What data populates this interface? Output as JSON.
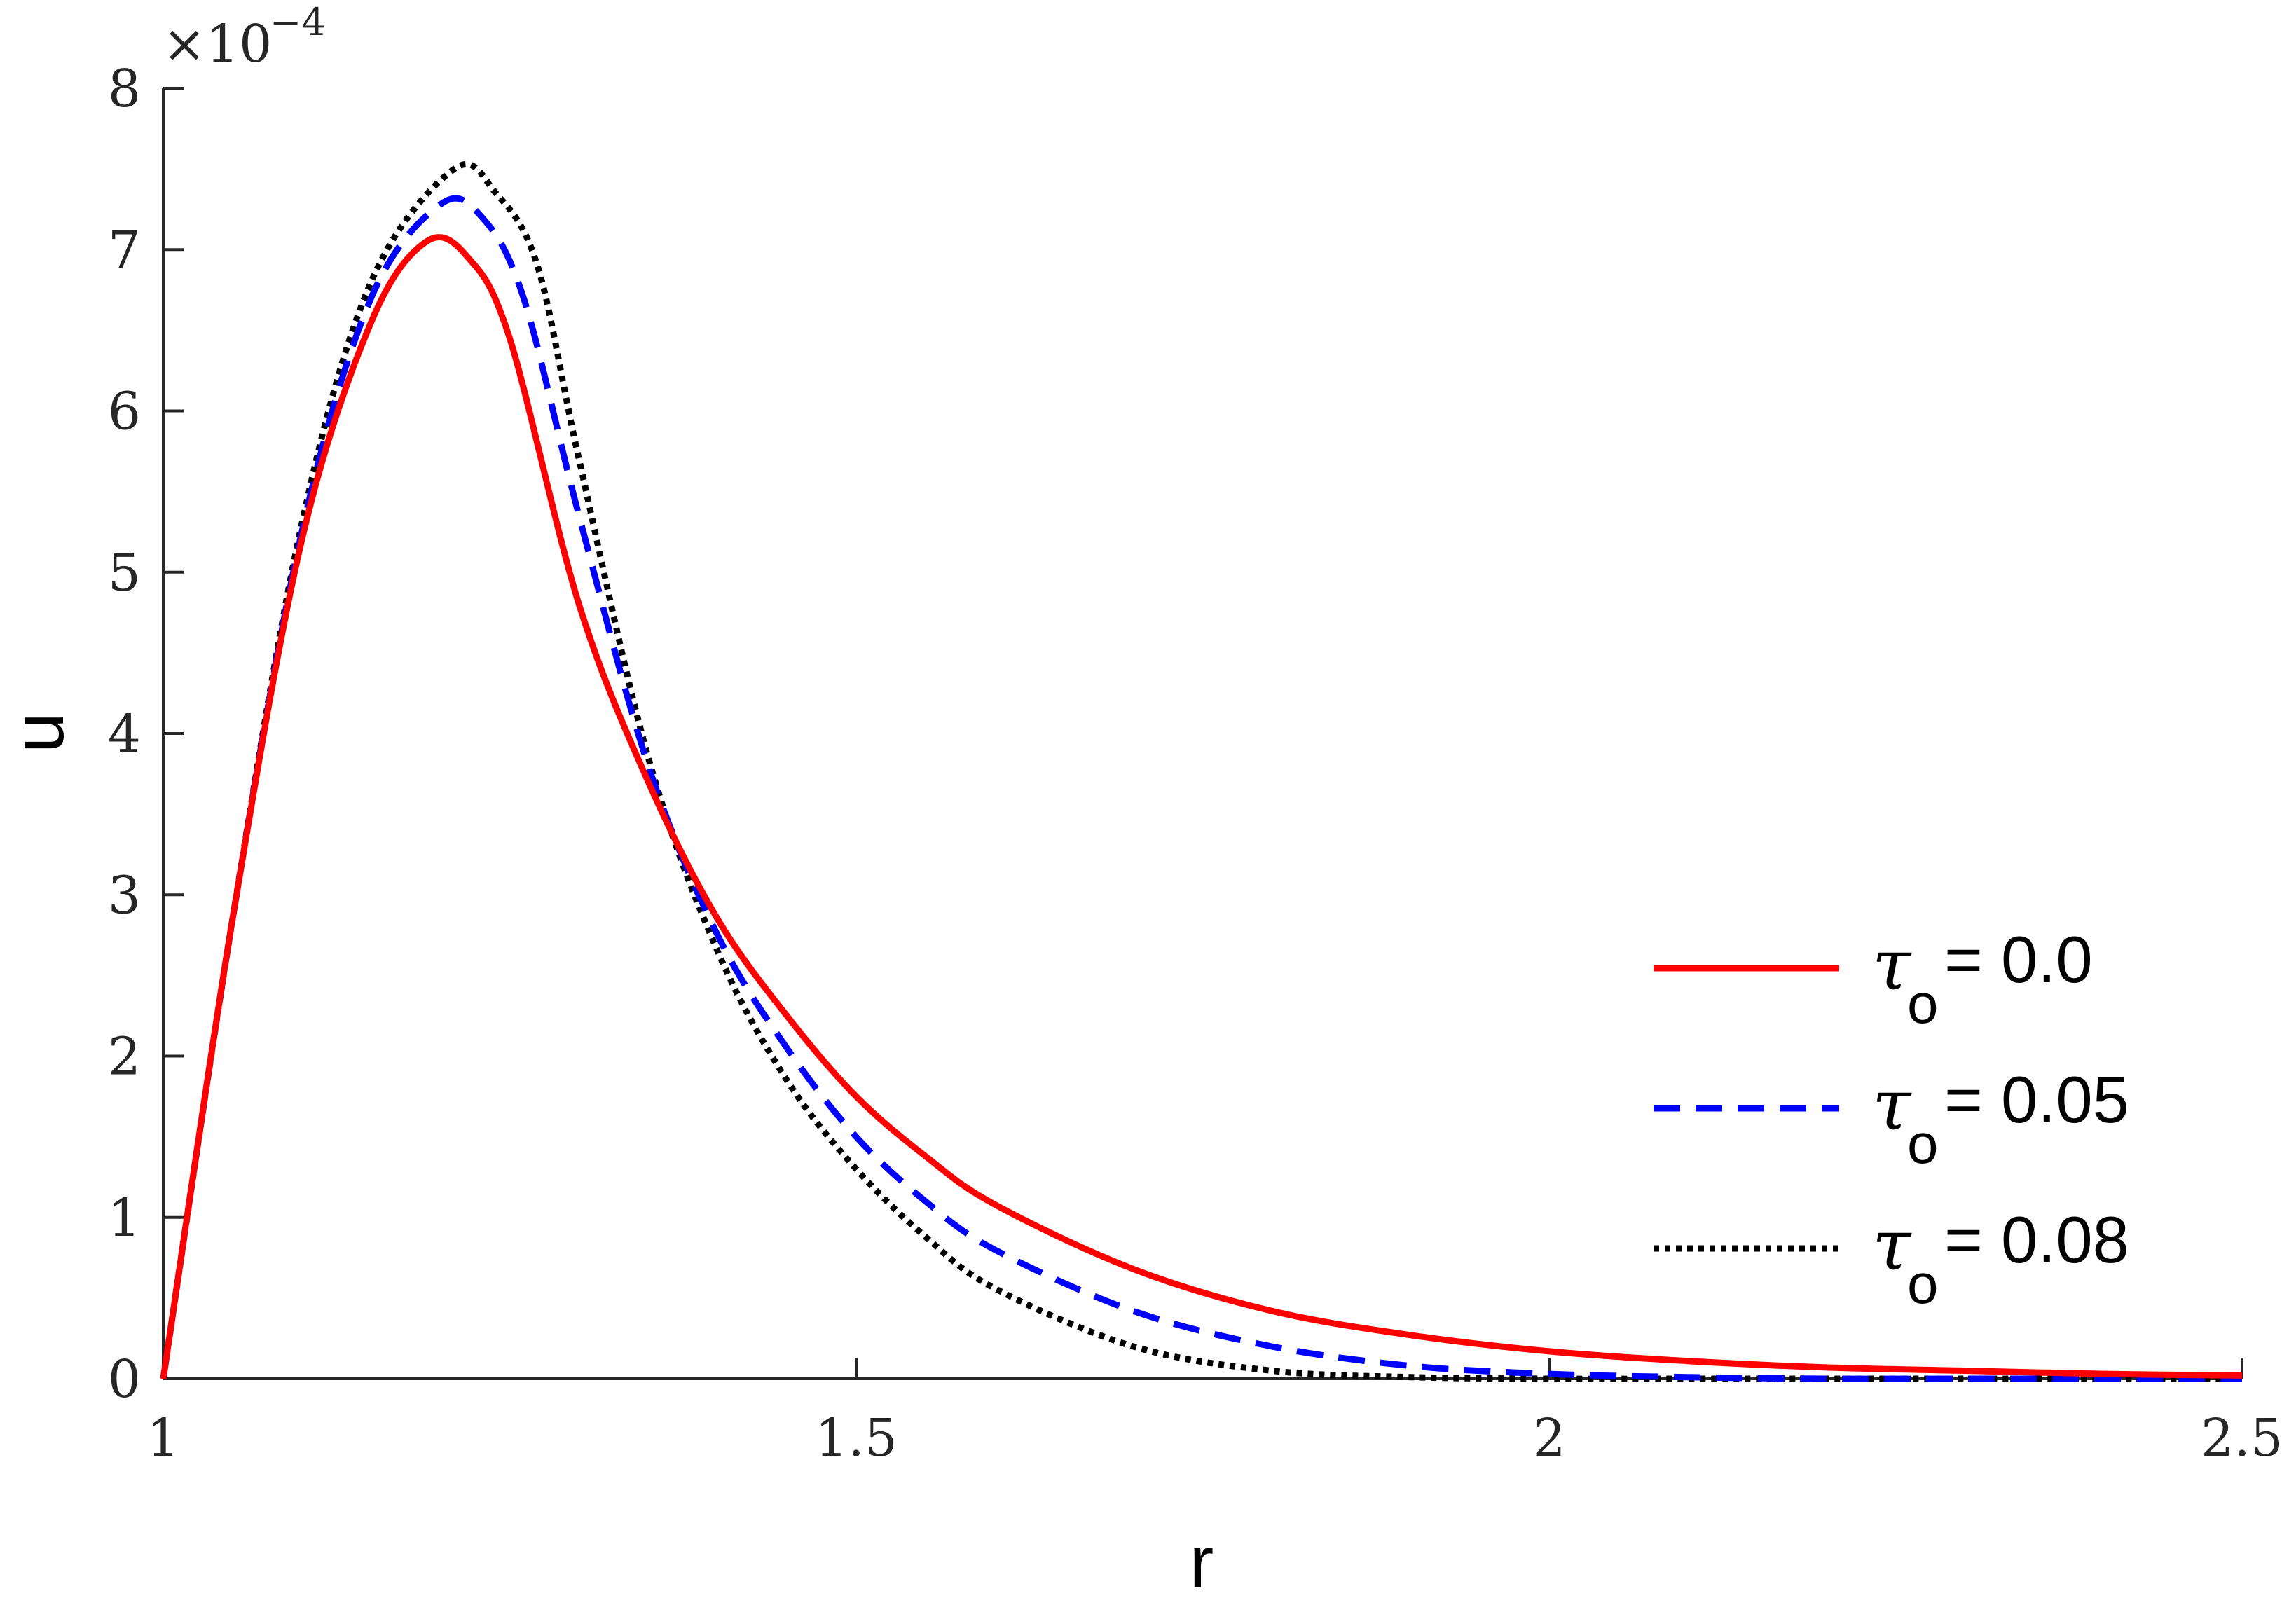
{
  "chart_data": {
    "type": "line",
    "xlabel": "r",
    "ylabel": "u",
    "xlim": [
      1,
      2.5
    ],
    "ylim": [
      0,
      8
    ],
    "y_multiplier_label": "×10",
    "y_multiplier_exponent": "−4",
    "x_ticks": [
      1,
      1.5,
      2,
      2.5
    ],
    "x_tick_labels": [
      "1",
      "1.5",
      "2",
      "2.5"
    ],
    "y_ticks": [
      0,
      1,
      2,
      3,
      4,
      5,
      6,
      7,
      8
    ],
    "y_tick_labels": [
      "0",
      "1",
      "2",
      "3",
      "4",
      "5",
      "6",
      "7",
      "8"
    ],
    "grid": false,
    "legend_position": "right",
    "series": [
      {
        "name_symbol": "τ",
        "name_subscript": "o",
        "name_rest": " = 0.0",
        "color": "#ff0000",
        "style": "solid",
        "x": [
          1.0,
          1.05,
          1.1,
          1.15,
          1.19,
          1.22,
          1.25,
          1.3,
          1.35,
          1.4,
          1.45,
          1.5,
          1.55,
          1.6,
          1.7,
          1.8,
          1.9,
          2.0,
          2.1,
          2.2,
          2.3,
          2.4,
          2.5
        ],
        "y": [
          0.0,
          2.85,
          5.2,
          6.55,
          7.05,
          6.95,
          6.45,
          4.8,
          3.7,
          2.85,
          2.25,
          1.75,
          1.38,
          1.08,
          0.68,
          0.42,
          0.27,
          0.17,
          0.11,
          0.07,
          0.05,
          0.03,
          0.02
        ]
      },
      {
        "name_symbol": "τ",
        "name_subscript": "o",
        "name_rest": " = 0.05",
        "color": "#0000ff",
        "style": "dashed",
        "x": [
          1.0,
          1.05,
          1.1,
          1.15,
          1.2,
          1.23,
          1.26,
          1.3,
          1.35,
          1.4,
          1.45,
          1.5,
          1.55,
          1.6,
          1.7,
          1.8,
          1.9,
          2.0,
          2.1,
          2.2,
          2.3,
          2.4,
          2.5
        ],
        "y": [
          0.0,
          2.85,
          5.25,
          6.7,
          7.28,
          7.2,
          6.7,
          5.35,
          3.8,
          2.75,
          2.05,
          1.5,
          1.1,
          0.8,
          0.42,
          0.2,
          0.08,
          0.03,
          0.01,
          0.0,
          0.0,
          0.0,
          0.0
        ]
      },
      {
        "name_symbol": "τ",
        "name_subscript": "o",
        "name_rest": " = 0.08",
        "color": "#000000",
        "style": "dotted",
        "x": [
          1.0,
          1.05,
          1.1,
          1.15,
          1.21,
          1.24,
          1.27,
          1.3,
          1.35,
          1.4,
          1.45,
          1.5,
          1.55,
          1.6,
          1.7,
          1.8,
          1.9,
          2.0,
          2.1,
          2.2,
          2.3,
          2.4,
          2.5
        ],
        "y": [
          0.0,
          2.85,
          5.3,
          6.8,
          7.5,
          7.35,
          6.9,
          5.7,
          3.85,
          2.65,
          1.85,
          1.3,
          0.88,
          0.56,
          0.2,
          0.05,
          0.01,
          0.0,
          0.0,
          0.0,
          0.0,
          0.0,
          0.0
        ]
      }
    ]
  }
}
